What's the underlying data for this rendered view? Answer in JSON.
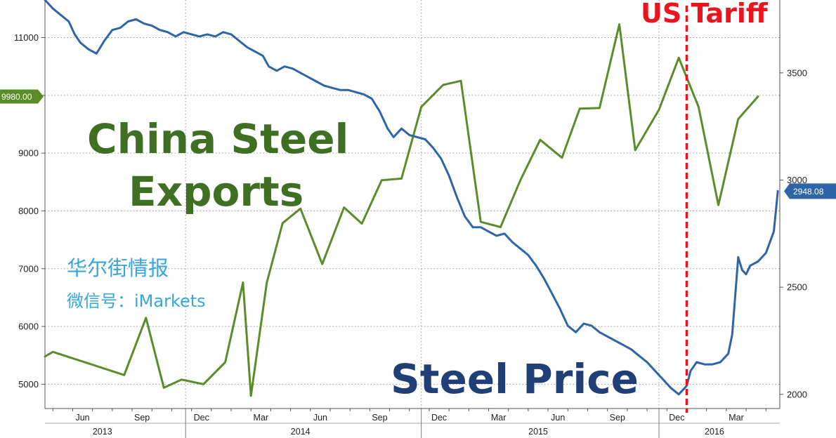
{
  "chart_data": {
    "type": "line",
    "annotations": {
      "exports_title_line1": "China Steel",
      "exports_title_line2": "Exports",
      "price_title": "Steel Price",
      "tariff_label": "US Tariff",
      "watermark_line1": "华尔街情报",
      "watermark_line2": "微信号：iMarkets"
    },
    "x_axis": {
      "months": [
        "Jun",
        "Sep",
        "Dec",
        "Mar",
        "Jun",
        "Sep",
        "Dec",
        "Mar",
        "Jun",
        "Sep",
        "Dec",
        "Mar"
      ],
      "month_x": [
        5.5,
        8.5,
        11.5,
        14.5,
        17.5,
        20.5,
        23.5,
        26.5,
        29.5,
        32.5,
        35.5,
        38.5
      ],
      "years": [
        "2013",
        "2014",
        "2015",
        "2016"
      ],
      "year_x": [
        6.5,
        16.5,
        28.5,
        37.4
      ],
      "year_dividers": [
        10.7,
        22.6,
        34.6
      ],
      "range": [
        3.6,
        40.7
      ]
    },
    "left_axis": {
      "ticks": [
        5000,
        6000,
        7000,
        8000,
        9000,
        10000,
        11000
      ],
      "tick_labels": [
        "5000",
        "6000",
        "7000",
        "8000",
        "9000",
        "",
        "11000"
      ],
      "range": [
        4580,
        11650
      ]
    },
    "right_axis": {
      "ticks": [
        2000,
        2500,
        3000,
        3500
      ],
      "tick_labels": [
        "2000",
        "2500",
        "3000",
        "3500"
      ],
      "range": [
        1934,
        3840
      ]
    },
    "last_value_tags": {
      "exports": "9980.00",
      "price": "2948.08"
    },
    "tariff_x": 36.0,
    "series": [
      {
        "name": "China Steel Exports",
        "axis": "left",
        "color": "#5b8c2a",
        "x": [
          3.6,
          4.0,
          7.6,
          8.7,
          9.6,
          10.5,
          11.6,
          12.7,
          13.6,
          14.0,
          14.8,
          15.6,
          16.5,
          17.6,
          18.7,
          19.6,
          20.6,
          21.6,
          22.6,
          23.7,
          24.6,
          25.6,
          26.6,
          27.6,
          28.6,
          29.7,
          30.6,
          31.6,
          32.6,
          33.4,
          34.6,
          35.6,
          36.6,
          37.6,
          38.6,
          39.6
        ],
        "y": [
          5480,
          5560,
          5160,
          6150,
          4940,
          5080,
          5000,
          5380,
          6760,
          4800,
          6760,
          7790,
          8040,
          7080,
          8060,
          7780,
          8530,
          8560,
          9800,
          10180,
          10250,
          7810,
          7720,
          8530,
          9230,
          8920,
          9770,
          9780,
          11230,
          9050,
          9750,
          10650,
          9800,
          8100,
          9590,
          9980
        ]
      },
      {
        "name": "Steel Price",
        "axis": "right",
        "color": "#2e64a8",
        "x": [
          3.6,
          4.0,
          4.4,
          4.8,
          5.1,
          5.4,
          5.8,
          6.2,
          6.6,
          7.0,
          7.4,
          7.8,
          8.2,
          8.6,
          9.0,
          9.4,
          9.8,
          10.2,
          10.6,
          11.0,
          11.4,
          11.8,
          12.2,
          12.6,
          13.0,
          13.4,
          13.8,
          14.2,
          14.6,
          14.9,
          15.3,
          15.7,
          16.1,
          16.5,
          16.9,
          17.3,
          17.7,
          18.1,
          18.5,
          18.9,
          19.3,
          19.7,
          20.1,
          20.5,
          20.9,
          21.2,
          21.6,
          22.0,
          22.4,
          22.8,
          23.2,
          23.6,
          24.0,
          24.4,
          24.8,
          25.2,
          25.6,
          26.0,
          26.4,
          26.8,
          27.2,
          27.6,
          28.0,
          28.4,
          28.8,
          29.2,
          29.6,
          30.0,
          30.4,
          30.8,
          31.2,
          31.6,
          32.0,
          32.4,
          32.8,
          33.2,
          33.6,
          34.0,
          34.4,
          34.8,
          35.2,
          35.6,
          36.0,
          36.2,
          36.5,
          36.9,
          37.3,
          37.7,
          38.1,
          38.3,
          38.6,
          38.8,
          39.0,
          39.2,
          39.6,
          40.0,
          40.4,
          40.6
        ],
        "y": [
          3840,
          3800,
          3770,
          3740,
          3680,
          3640,
          3610,
          3590,
          3650,
          3700,
          3710,
          3740,
          3750,
          3730,
          3720,
          3700,
          3690,
          3670,
          3690,
          3680,
          3670,
          3680,
          3670,
          3690,
          3680,
          3650,
          3620,
          3600,
          3580,
          3530,
          3510,
          3530,
          3520,
          3500,
          3480,
          3460,
          3440,
          3430,
          3420,
          3420,
          3410,
          3400,
          3380,
          3320,
          3240,
          3200,
          3240,
          3210,
          3200,
          3190,
          3150,
          3100,
          3020,
          2920,
          2830,
          2780,
          2780,
          2760,
          2740,
          2750,
          2710,
          2680,
          2650,
          2600,
          2540,
          2470,
          2400,
          2320,
          2290,
          2330,
          2320,
          2290,
          2270,
          2250,
          2230,
          2210,
          2180,
          2150,
          2110,
          2070,
          2030,
          2000,
          2040,
          2110,
          2150,
          2140,
          2140,
          2150,
          2190,
          2280,
          2640,
          2580,
          2560,
          2600,
          2620,
          2660,
          2760,
          2948.08
        ]
      }
    ]
  }
}
